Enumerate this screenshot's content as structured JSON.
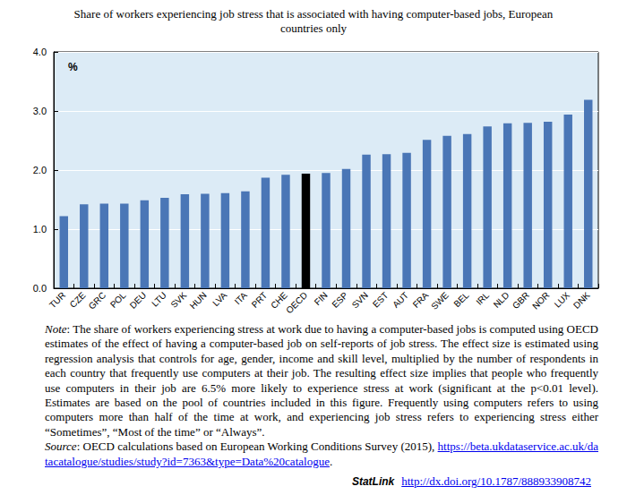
{
  "chart_data": {
    "type": "bar",
    "title": "Share of workers experiencing job stress that is associated with having computer-based jobs, European countries only",
    "annotations": [
      "%"
    ],
    "categories": [
      "TUR",
      "CZE",
      "GRC",
      "POL",
      "DEU",
      "LTU",
      "SVK",
      "HUN",
      "LVA",
      "ITA",
      "PRT",
      "CHE",
      "OECD",
      "FIN",
      "ESP",
      "SVN",
      "EST",
      "AUT",
      "FRA",
      "SWE",
      "BEL",
      "IRL",
      "NLD",
      "GBR",
      "NOR",
      "LUX",
      "DNK"
    ],
    "values": [
      1.22,
      1.42,
      1.43,
      1.43,
      1.49,
      1.53,
      1.59,
      1.6,
      1.61,
      1.64,
      1.87,
      1.92,
      1.94,
      1.95,
      2.02,
      2.26,
      2.27,
      2.29,
      2.51,
      2.58,
      2.61,
      2.74,
      2.79,
      2.8,
      2.82,
      2.94,
      3.19
    ],
    "colors": [
      "#4a76b6",
      "#4a76b6",
      "#4a76b6",
      "#4a76b6",
      "#4a76b6",
      "#4a76b6",
      "#4a76b6",
      "#4a76b6",
      "#4a76b6",
      "#4a76b6",
      "#4a76b6",
      "#4a76b6",
      "#000000",
      "#4a76b6",
      "#4a76b6",
      "#4a76b6",
      "#4a76b6",
      "#4a76b6",
      "#4a76b6",
      "#4a76b6",
      "#4a76b6",
      "#4a76b6",
      "#4a76b6",
      "#4a76b6",
      "#4a76b6",
      "#4a76b6",
      "#4a76b6"
    ],
    "ylim": [
      0,
      4
    ],
    "yticks": [
      {
        "value": 0,
        "label": "0.0"
      },
      {
        "value": 1,
        "label": "1.0"
      },
      {
        "value": 2,
        "label": "2.0"
      },
      {
        "value": 3,
        "label": "3.0"
      },
      {
        "value": 4,
        "label": "4.0"
      }
    ],
    "grid": true,
    "note": {
      "label": "Note",
      "text": ": The share of workers experiencing stress at work due to having a computer-based jobs is computed using OECD estimates of the effect of having a computer-based job on self-reports of job stress. The effect size is estimated using regression analysis that controls for age, gender, income and skill level, multiplied by the number of respondents in each country that frequently use computers at their job. The resulting effect size implies that people who frequently use computers in their job are 6.5% more likely to experience stress at work (significant at the p<0.01 level). Estimates are based on the pool of countries included in this figure. Frequently using computers refers to using computers more than half of the time at work, and experiencing job stress refers to experiencing stress either “Sometimes”, “Most of the time” or “Always”."
    },
    "source": {
      "label": "Source",
      "text": ": OECD calculations based on European Working Conditions Survey (2015), ",
      "link": "https://beta.ukdataservice.ac.uk/datacatalogue/studies/study?id=7363&type=Data%20catalogue",
      "after": "."
    },
    "statlink": {
      "label": "StatLink",
      "link": "http://dx.doi.org/10.1787/888933908742"
    }
  }
}
